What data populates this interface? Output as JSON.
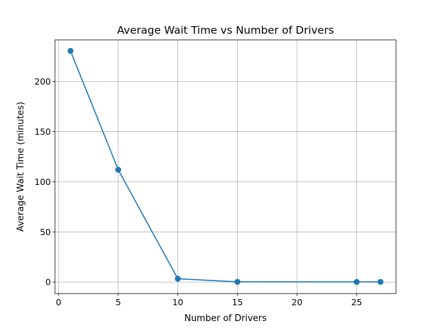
{
  "chart_data": {
    "type": "line",
    "title": "Average Wait Time vs Number of Drivers",
    "xlabel": "Number of Drivers",
    "ylabel": "Average Wait Time (minutes)",
    "xlim": [
      -0.3,
      28.3
    ],
    "ylim": [
      -11.5,
      241.5
    ],
    "xticks": [
      0,
      5,
      10,
      15,
      20,
      25
    ],
    "yticks": [
      0,
      50,
      100,
      150,
      200
    ],
    "grid": true,
    "marker": "circle",
    "series": [
      {
        "color": "#1f77b4",
        "x": [
          1,
          5,
          10,
          15,
          25,
          27
        ],
        "y": [
          230.5,
          112,
          3.3,
          0.2,
          0.1,
          0.1
        ]
      }
    ]
  }
}
